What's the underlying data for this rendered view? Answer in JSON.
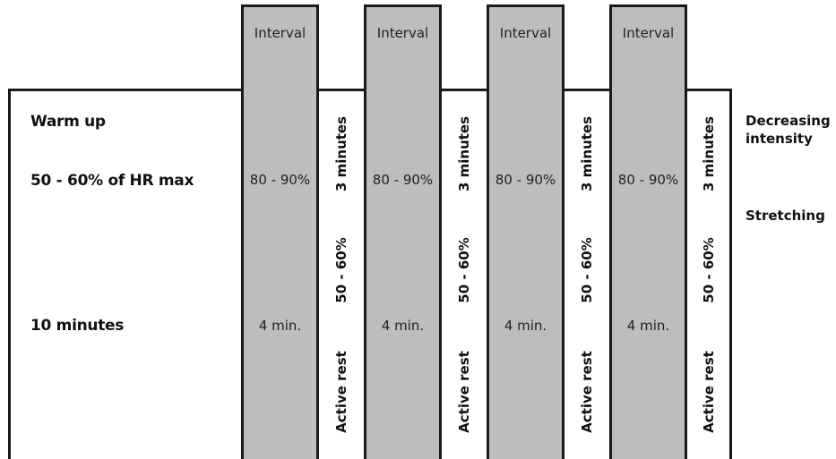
{
  "warmup": {
    "title": "Warm up",
    "intensity": "50 - 60% of HR max",
    "duration": "10 minutes"
  },
  "intervals": [
    {
      "label": "Interval",
      "intensity": "80 - 90%",
      "duration": "4 min."
    },
    {
      "label": "Interval",
      "intensity": "80 - 90%",
      "duration": "4 min."
    },
    {
      "label": "Interval",
      "intensity": "80 - 90%",
      "duration": "4 min."
    },
    {
      "label": "Interval",
      "intensity": "80 - 90%",
      "duration": "4 min."
    }
  ],
  "rests": [
    {
      "duration": "3 minutes",
      "intensity": "50 - 60%",
      "label": "Active rest"
    },
    {
      "duration": "3 minutes",
      "intensity": "50 - 60%",
      "label": "Active rest"
    },
    {
      "duration": "3 minutes",
      "intensity": "50 - 60%",
      "label": "Active rest"
    },
    {
      "duration": "3 minutes",
      "intensity": "50 - 60%",
      "label": "Active rest"
    }
  ],
  "cooldown": {
    "line1": "Decreasing",
    "line2": "intensity",
    "stretching": "Stretching"
  },
  "colors": {
    "interval_fill": "#bdbdbd",
    "border": "#1a1a1a"
  }
}
